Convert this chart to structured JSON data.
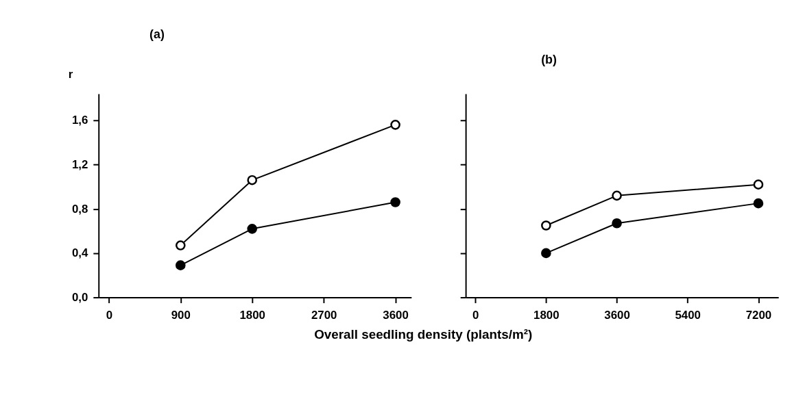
{
  "chart_data": [
    {
      "type": "line",
      "title": "(a)",
      "ylabel": "r",
      "x": [
        900,
        1800,
        3600
      ],
      "marker": "circle",
      "line_style": "solid",
      "grid": false,
      "legend": false,
      "series": [
        {
          "color": "#000000",
          "values": [
            0.47,
            1.06,
            1.56
          ]
        },
        {
          "color": "#000000",
          "values": [
            0.29,
            0.62,
            0.86
          ]
        }
      ],
      "xlim": [
        -130,
        3800
      ],
      "xticks": [
        0,
        900,
        1800,
        2700,
        3600
      ],
      "ylim": [
        0,
        1.84
      ],
      "yticks": [
        {
          "value": 0,
          "label": "0,0"
        },
        {
          "value": 0.4,
          "label": "0,4"
        },
        {
          "value": 0.8,
          "label": "0,8"
        },
        {
          "value": 1.2,
          "label": "1,2"
        },
        {
          "value": 1.6,
          "label": "1,6"
        }
      ]
    },
    {
      "type": "line",
      "title": "(b)",
      "xlabel": "Overall seedling density (plants/m²)",
      "x": [
        1800,
        3600,
        7200
      ],
      "marker": "circle",
      "line_style": "solid",
      "grid": false,
      "legend": false,
      "tick_labels": "x",
      "series": [
        {
          "color": "#000000",
          "values": [
            0.65,
            0.92,
            1.02
          ]
        },
        {
          "color": "#000000",
          "values": [
            0.4,
            0.67,
            0.85
          ]
        }
      ],
      "xlim": [
        -245,
        7710
      ],
      "xticks": [
        0,
        1800,
        3600,
        5400,
        7200
      ],
      "ylim": [
        0,
        1.84
      ],
      "yticks": [
        0,
        0.4,
        0.8,
        1.2,
        1.6
      ]
    }
  ]
}
